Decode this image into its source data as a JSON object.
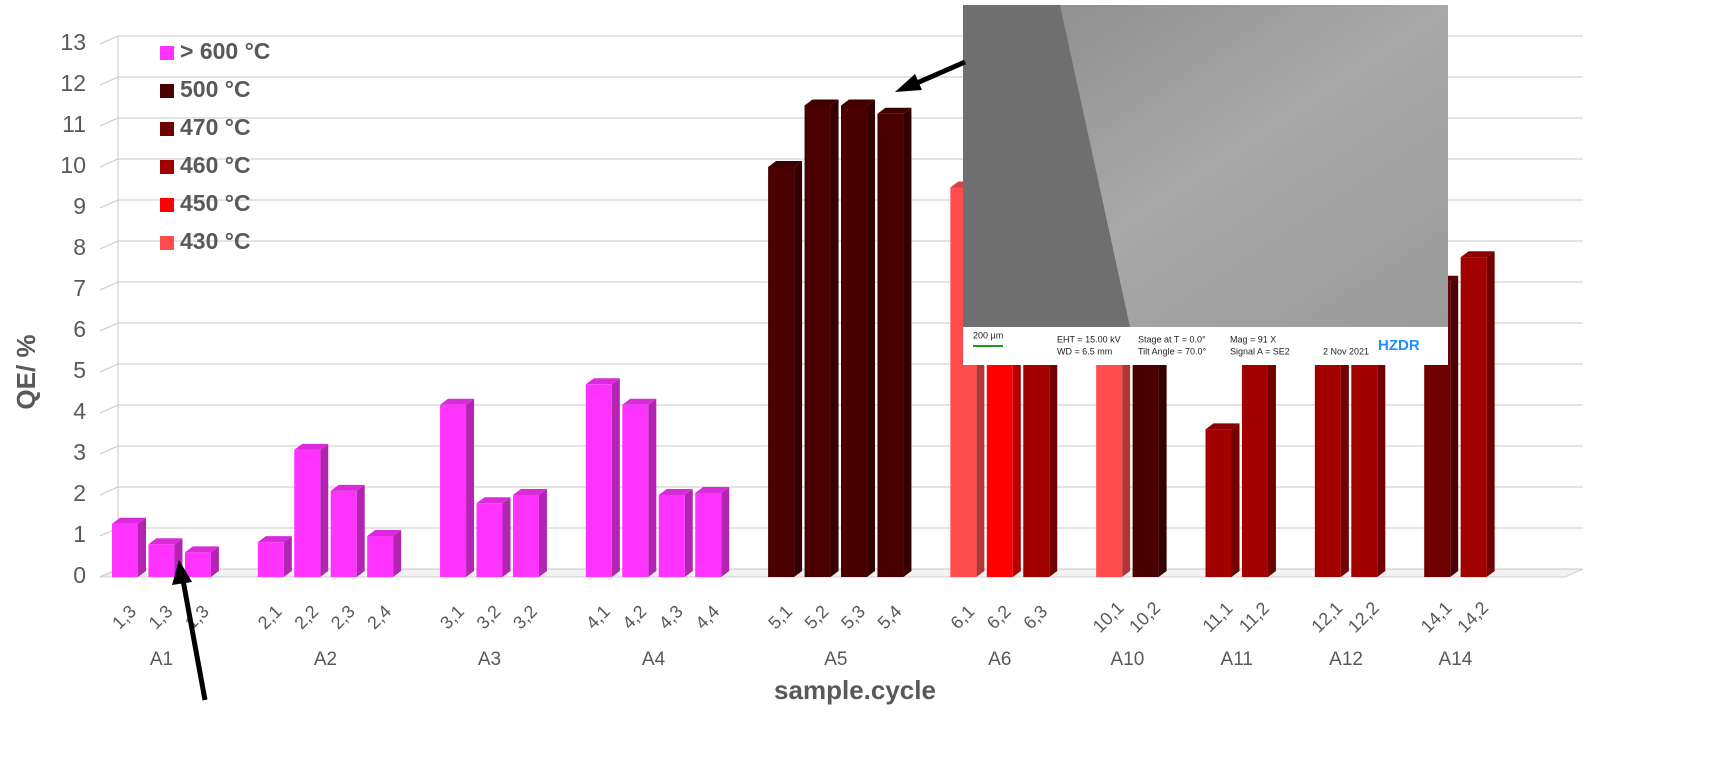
{
  "chart_data": {
    "type": "bar3d",
    "y_label": "QE/ %",
    "x_label": "sample.cycle",
    "ylim": [
      0,
      13
    ],
    "yticks": [
      0,
      1,
      2,
      3,
      4,
      5,
      6,
      7,
      8,
      9,
      10,
      11,
      12,
      13
    ],
    "grid": true,
    "legend": [
      {
        "name": ">  600 °C",
        "color": "#ff33ff"
      },
      {
        "name": "500 °C",
        "color": "#4a0000"
      },
      {
        "name": "470 °C",
        "color": "#6e0000"
      },
      {
        "name": "460 °C",
        "color": "#a30000"
      },
      {
        "name": "450 °C",
        "color": "#ff0000"
      },
      {
        "name": "430 °C",
        "color": "#ff4d4d"
      }
    ],
    "groups": [
      {
        "name": "A1",
        "categories": [
          "1,3",
          "1,3",
          "1,3"
        ],
        "values": [
          1.3,
          0.8,
          0.6
        ],
        "colors": [
          "#ff33ff",
          "#ff33ff",
          "#ff33ff"
        ]
      },
      {
        "name": "A2",
        "categories": [
          "2,1",
          "2,2",
          "2,3",
          "2,4"
        ],
        "values": [
          0.85,
          3.1,
          2.1,
          1.0
        ],
        "colors": [
          "#ff33ff",
          "#ff33ff",
          "#ff33ff",
          "#ff33ff"
        ]
      },
      {
        "name": "A3",
        "categories": [
          "3,1",
          "3,2",
          "3,2"
        ],
        "values": [
          4.2,
          1.8,
          2.0
        ],
        "colors": [
          "#ff33ff",
          "#ff33ff",
          "#ff33ff"
        ]
      },
      {
        "name": "A4",
        "categories": [
          "4,1",
          "4,2",
          "4,3",
          "4,4"
        ],
        "values": [
          4.7,
          4.2,
          2.0,
          2.05
        ],
        "colors": [
          "#ff33ff",
          "#ff33ff",
          "#ff33ff",
          "#ff33ff"
        ]
      },
      {
        "name": "A5",
        "categories": [
          "5,1",
          "5,2",
          "5,3",
          "5,4"
        ],
        "values": [
          10.0,
          11.5,
          11.5,
          11.3
        ],
        "colors": [
          "#4a0000",
          "#4a0000",
          "#4a0000",
          "#4a0000"
        ]
      },
      {
        "name": "A6",
        "categories": [
          "6,1",
          "6,2",
          "6,3"
        ],
        "values": [
          9.5,
          6.0,
          5.8
        ],
        "colors": [
          "#ff4d4d",
          "#ff0000",
          "#a30000"
        ]
      },
      {
        "name": "A10",
        "categories": [
          "10,1",
          "10,2"
        ],
        "values": [
          5.5,
          5.5
        ],
        "colors": [
          "#ff4d4d",
          "#4a0000"
        ]
      },
      {
        "name": "A11",
        "categories": [
          "11,1",
          "11,2"
        ],
        "values": [
          3.6,
          5.5
        ],
        "colors": [
          "#a30000",
          "#a30000"
        ]
      },
      {
        "name": "A12",
        "categories": [
          "12,1",
          "12,2"
        ],
        "values": [
          5.5,
          5.5
        ],
        "colors": [
          "#a30000",
          "#a30000"
        ]
      },
      {
        "name": "A14",
        "categories": [
          "14,1",
          "14,2"
        ],
        "values": [
          7.2,
          7.8
        ],
        "colors": [
          "#6e0000",
          "#a30000"
        ]
      }
    ]
  },
  "inset": {
    "scale": "200 µm",
    "eht": "EHT = 15.00 kV",
    "wd": "WD = 6.5 mm",
    "stage": "Stage at T = 0.0°",
    "tilt": "Tilt Angle = 70.0°",
    "mag": "Mag = 91 X",
    "signal": "Signal A = SE2",
    "date": "2 Nov 2021",
    "logo": "HZDR"
  }
}
